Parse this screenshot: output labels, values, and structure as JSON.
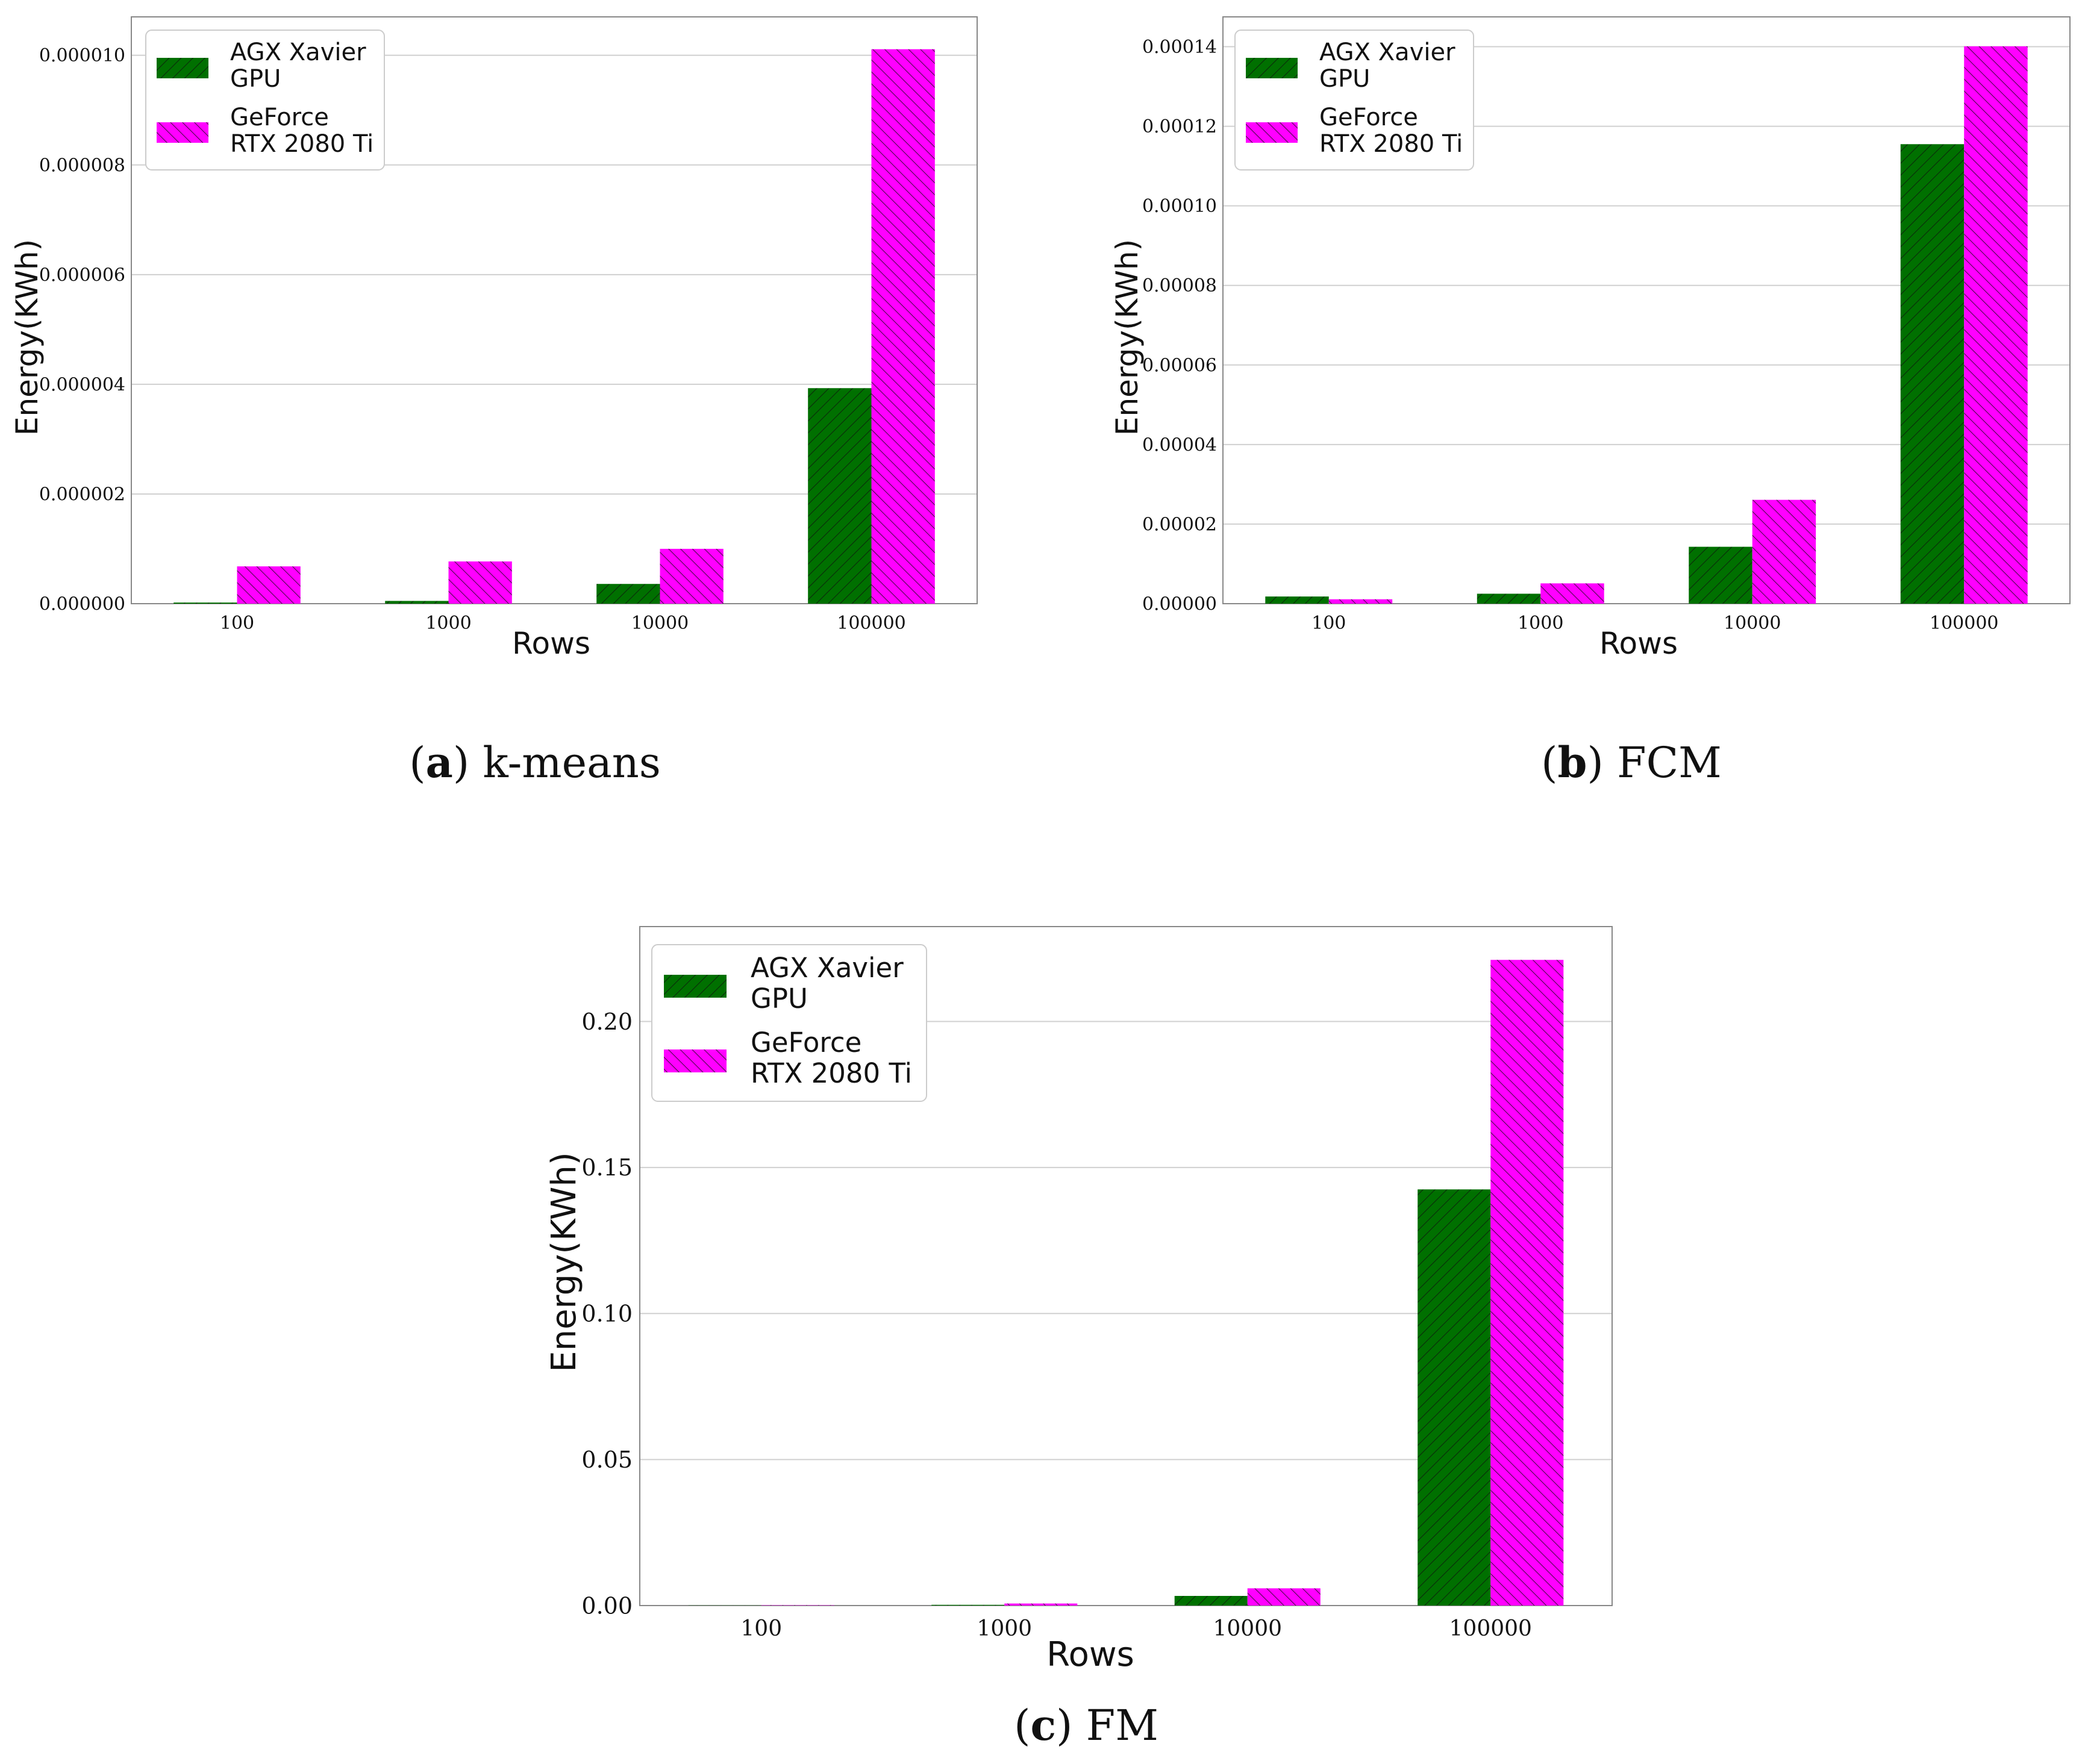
{
  "figure": {
    "panels": [
      {
        "caption_letter": "a",
        "caption_text": "k-means",
        "chart_data": {
          "type": "bar",
          "categories": [
            "100",
            "1000",
            "10000",
            "100000"
          ],
          "series": [
            {
              "name": "AGX Xavier GPU",
              "values": [
                2e-08,
                5e-08,
                3.6e-07,
                3.93e-06
              ]
            },
            {
              "name": "GeForce RTX 2080 Ti",
              "values": [
                6.8e-07,
                7.7e-07,
                1e-06,
                1.011e-05
              ]
            }
          ],
          "xlabel": "Rows",
          "ylabel": "Energy(KWh)",
          "ylim": [
            0,
            1.07e-05
          ],
          "yticks": [
            0,
            2e-06,
            4e-06,
            6e-06,
            8e-06,
            1e-05
          ],
          "ytick_labels": [
            "0.000000",
            "0.000002",
            "0.000004",
            "0.000006",
            "0.000008",
            "0.000010"
          ],
          "legend": {
            "position": "upper-left",
            "entries": [
              {
                "line1": "AGX Xavier",
                "line2": "GPU"
              },
              {
                "line1": "GeForce",
                "line2": "RTX 2080 Ti"
              }
            ]
          },
          "grid": true
        }
      },
      {
        "caption_letter": "b",
        "caption_text": "FCM",
        "chart_data": {
          "type": "bar",
          "categories": [
            "100",
            "1000",
            "10000",
            "100000"
          ],
          "series": [
            {
              "name": "AGX Xavier GPU",
              "values": [
                1.8e-06,
                2.5e-06,
                1.43e-05,
                0.0001155
              ]
            },
            {
              "name": "GeForce RTX 2080 Ti",
              "values": [
                1.1e-06,
                5.1e-06,
                2.61e-05,
                0.0001401
              ]
            }
          ],
          "xlabel": "Rows",
          "ylabel": "Energy(KWh)",
          "ylim": [
            0,
            0.0001475
          ],
          "yticks": [
            0,
            2e-05,
            4e-05,
            6e-05,
            8e-05,
            0.0001,
            0.00012,
            0.00014
          ],
          "ytick_labels": [
            "0.00000",
            "0.00002",
            "0.00004",
            "0.00006",
            "0.00008",
            "0.00010",
            "0.00012",
            "0.00014"
          ],
          "legend": {
            "position": "upper-left",
            "entries": [
              {
                "line1": "AGX Xavier",
                "line2": "GPU"
              },
              {
                "line1": "GeForce",
                "line2": "RTX 2080 Ti"
              }
            ]
          },
          "grid": true
        }
      },
      {
        "caption_letter": "c",
        "caption_text": "FM",
        "chart_data": {
          "type": "bar",
          "categories": [
            "100",
            "1000",
            "10000",
            "100000"
          ],
          "series": [
            {
              "name": "AGX Xavier GPU",
              "values": [
                5e-05,
                0.00025,
                0.0033,
                0.1425
              ]
            },
            {
              "name": "GeForce RTX 2080 Ti",
              "values": [
                0.0001,
                0.0007,
                0.0059,
                0.2211
              ]
            }
          ],
          "xlabel": "Rows",
          "ylabel": "Energy(KWh)",
          "ylim": [
            0,
            0.2325
          ],
          "yticks": [
            0,
            0.05,
            0.1,
            0.15,
            0.2
          ],
          "ytick_labels": [
            "0.00",
            "0.05",
            "0.10",
            "0.15",
            "0.20"
          ],
          "legend": {
            "position": "upper-left",
            "entries": [
              {
                "line1": "AGX Xavier",
                "line2": "GPU"
              },
              {
                "line1": "GeForce",
                "line2": "RTX 2080 Ti"
              }
            ]
          },
          "grid": true
        }
      }
    ]
  },
  "colors": {
    "series1": "#007000",
    "series2": "#ff00ff",
    "grid": "#d0d0d0",
    "axis": "#888888"
  }
}
